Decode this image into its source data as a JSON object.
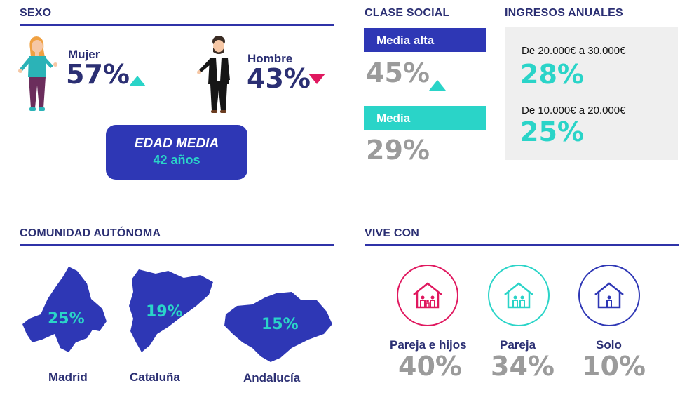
{
  "sexo": {
    "title": "SEXO",
    "mujer": {
      "label": "Mujer",
      "value": "57%",
      "trend": "up"
    },
    "hombre": {
      "label": "Hombre",
      "value": "43%",
      "trend": "down"
    },
    "edad": {
      "label": "EDAD MEDIA",
      "value": "42 años"
    }
  },
  "clase_social": {
    "title": "CLASE SOCIAL",
    "items": [
      {
        "label": "Media alta",
        "value": "45%",
        "trend": "up"
      },
      {
        "label": "Media",
        "value": "29%"
      }
    ]
  },
  "ingresos": {
    "title": "INGRESOS ANUALES",
    "items": [
      {
        "label": "De 20.000€ a 30.000€",
        "value": "28%"
      },
      {
        "label": "De 10.000€ a 20.000€",
        "value": "25%"
      }
    ]
  },
  "comunidad": {
    "title": "COMUNIDAD AUTÓNOMA",
    "items": [
      {
        "name": "Madrid",
        "value": "25%"
      },
      {
        "name": "Cataluña",
        "value": "19%"
      },
      {
        "name": "Andalucía",
        "value": "15%"
      }
    ]
  },
  "vive_con": {
    "title": "VIVE CON",
    "items": [
      {
        "name": "Pareja e hijos",
        "value": "40%",
        "color": "#e0185f"
      },
      {
        "name": "Pareja",
        "value": "34%",
        "color": "#2ad4c8"
      },
      {
        "name": "Solo",
        "value": "10%",
        "color": "#2e37b5"
      }
    ]
  },
  "colors": {
    "navy": "#2e37b5",
    "teal": "#2ad4c8",
    "pink": "#e0185f",
    "gray": "#9b9b9b"
  }
}
